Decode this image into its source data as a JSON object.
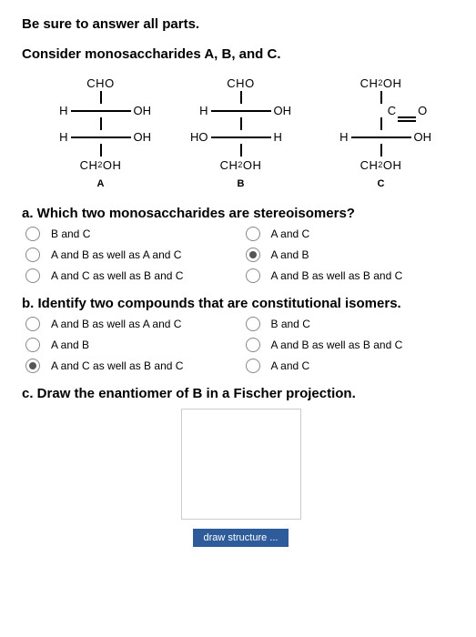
{
  "instruction": "Be sure to answer all parts.",
  "heading": "Consider monosaccharides A, B, and C.",
  "mols": {
    "A": {
      "top": "CHO",
      "rows": [
        {
          "l": "H",
          "r": "OH"
        },
        {
          "l": "H",
          "r": "OH"
        }
      ],
      "bot_ch2oh": true,
      "label": "A",
      "bot": "CH"
    },
    "B": {
      "top": "CHO",
      "rows": [
        {
          "l": "H",
          "r": "OH"
        },
        {
          "l": "HO",
          "r": "H"
        }
      ],
      "bot_ch2oh": true,
      "label": "B",
      "bot": "CH"
    },
    "C": {
      "top_ch2oh": true,
      "top": "CH",
      "ketone_o": "O",
      "ketone_c": "C",
      "rows": [
        {
          "l": "H",
          "r": "OH"
        }
      ],
      "bot_ch2oh": true,
      "bot": "CH",
      "label": "C"
    }
  },
  "qa": {
    "prompt": "a. Which two monosaccharides are stereoisomers?",
    "options": [
      {
        "label": "B and C",
        "sel": false
      },
      {
        "label": "A and C",
        "sel": false
      },
      {
        "label": "A and B as well as A and C",
        "sel": false
      },
      {
        "label": "A and B",
        "sel": true
      },
      {
        "label": "A and C as well as B and C",
        "sel": false
      },
      {
        "label": "A and B as well as B and C",
        "sel": false
      }
    ]
  },
  "qb": {
    "prompt": "b. Identify two compounds that are constitutional isomers.",
    "options": [
      {
        "label": "A and B as well as A and C",
        "sel": false
      },
      {
        "label": "B and C",
        "sel": false
      },
      {
        "label": "A and B",
        "sel": false
      },
      {
        "label": "A and B as well as B and C",
        "sel": false
      },
      {
        "label": "A and C as well as B and C",
        "sel": true
      },
      {
        "label": "A and C",
        "sel": false
      }
    ]
  },
  "qc": {
    "prompt": "c. Draw the enantiomer of B in a Fischer projection.",
    "button": "draw structure ..."
  },
  "oh_suffix": "OH",
  "two": "2"
}
